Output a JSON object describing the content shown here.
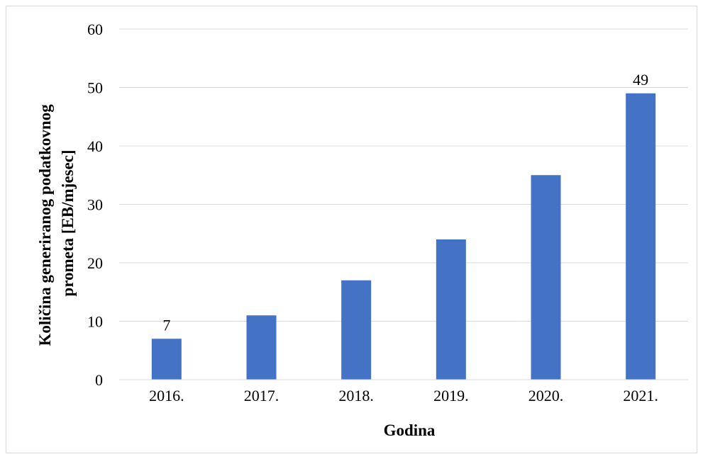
{
  "chart_data": {
    "type": "bar",
    "categories": [
      "2016.",
      "2017.",
      "2018.",
      "2019.",
      "2020.",
      "2021."
    ],
    "values": [
      7,
      11,
      17,
      24,
      35,
      49
    ],
    "data_labels": [
      "7",
      null,
      null,
      null,
      null,
      "49"
    ],
    "title": "",
    "xlabel": "Godina",
    "ylabel_lines": [
      "Količina generiranog podatkovnog",
      "prometa [EB/mjesec]"
    ],
    "ylim": [
      0,
      60
    ],
    "yticks": [
      0,
      10,
      20,
      30,
      40,
      50,
      60
    ],
    "grid": true,
    "legend": "none",
    "colors": {
      "bar": "#4472c4",
      "grid": "#d9d9d9",
      "frame": "#d9d9d9"
    }
  }
}
